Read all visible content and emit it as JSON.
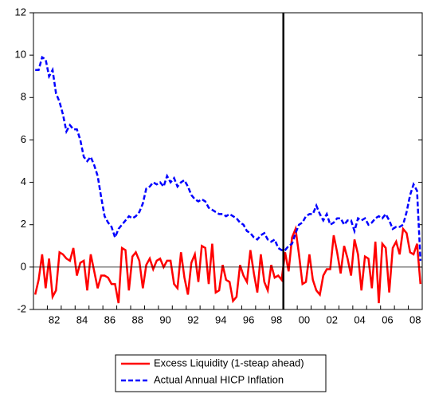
{
  "chart_data": {
    "type": "line",
    "categories": [
      null,
      null,
      null,
      null,
      "82",
      null,
      null,
      null,
      null,
      null,
      null,
      null,
      "84",
      null,
      null,
      null,
      null,
      null,
      null,
      null,
      "86",
      null,
      null,
      null,
      null,
      null,
      null,
      null,
      "88",
      null,
      null,
      null,
      null,
      null,
      null,
      null,
      "90",
      null,
      null,
      null,
      null,
      null,
      null,
      null,
      "92",
      null,
      null,
      null,
      null,
      null,
      null,
      null,
      "94",
      null,
      null,
      null,
      null,
      null,
      null,
      null,
      "96",
      null,
      null,
      null,
      null,
      null,
      null,
      null,
      "98",
      null,
      null,
      null,
      null,
      null,
      null,
      null,
      "00",
      null,
      null,
      null,
      null,
      null,
      null,
      null,
      "02",
      null,
      null,
      null,
      null,
      null,
      null,
      null,
      "04",
      null,
      null,
      null,
      null,
      null,
      null,
      null,
      "06",
      null,
      null,
      null,
      null,
      null,
      null,
      null,
      "08",
      null,
      null,
      null
    ],
    "series": [
      {
        "name": "Excess Liquidity (1-steap ahead)",
        "color": "#ff0000",
        "dash": false,
        "values": [
          -1.3,
          -0.6,
          0.6,
          -1.0,
          0.4,
          -1.4,
          -1.1,
          0.7,
          0.6,
          0.4,
          0.3,
          0.9,
          -0.4,
          0.2,
          0.3,
          -1.1,
          0.6,
          -0.2,
          -1.0,
          -0.4,
          -0.4,
          -0.5,
          -0.8,
          -0.8,
          -1.7,
          0.9,
          0.8,
          -1.1,
          0.5,
          0.7,
          0.3,
          -1.0,
          0.1,
          0.4,
          -0.1,
          0.3,
          0.4,
          0.0,
          0.3,
          0.3,
          -0.8,
          -1.0,
          0.7,
          -0.5,
          -1.3,
          0.2,
          0.6,
          -0.7,
          1.0,
          0.9,
          -0.8,
          1.1,
          -1.2,
          -1.1,
          0.1,
          -0.6,
          -0.7,
          -1.6,
          -1.4,
          0.1,
          -0.4,
          -0.7,
          0.8,
          -0.3,
          -1.2,
          0.6,
          -0.7,
          -1.1,
          0.1,
          -0.5,
          -0.4,
          -0.6,
          0.7,
          -0.2,
          1.4,
          1.8,
          0.6,
          -0.8,
          -0.7,
          0.6,
          -0.6,
          -1.1,
          -1.3,
          -0.4,
          -0.1,
          -0.1,
          1.5,
          0.7,
          -0.3,
          1.0,
          0.4,
          -0.4,
          1.3,
          0.6,
          -1.1,
          0.5,
          0.4,
          -1.0,
          1.2,
          -1.7,
          1.1,
          0.9,
          -1.2,
          0.9,
          1.2,
          0.6,
          1.8,
          1.6,
          0.7,
          0.6,
          1.1,
          -0.8
        ]
      },
      {
        "name": "Actual Annual HICP Inflation",
        "color": "#0000ff",
        "dash": true,
        "values": [
          9.3,
          9.3,
          9.9,
          9.8,
          9.0,
          9.3,
          8.2,
          7.8,
          7.2,
          6.4,
          6.7,
          6.5,
          6.5,
          6.0,
          5.2,
          5.0,
          5.2,
          4.8,
          4.3,
          3.3,
          2.4,
          2.1,
          1.9,
          1.4,
          1.8,
          2.0,
          2.2,
          2.4,
          2.3,
          2.4,
          2.6,
          3.0,
          3.7,
          3.8,
          4.0,
          3.9,
          4.0,
          3.8,
          4.3,
          4.0,
          4.2,
          3.8,
          4.0,
          4.1,
          3.8,
          3.4,
          3.2,
          3.1,
          3.2,
          3.1,
          2.8,
          2.7,
          2.6,
          2.5,
          2.5,
          2.4,
          2.5,
          2.4,
          2.3,
          2.1,
          2.0,
          1.7,
          1.6,
          1.4,
          1.3,
          1.5,
          1.6,
          1.3,
          1.2,
          1.3,
          0.9,
          0.8,
          0.8,
          1.0,
          1.1,
          1.6,
          2.0,
          2.1,
          2.4,
          2.5,
          2.5,
          2.9,
          2.5,
          2.2,
          2.5,
          2.0,
          2.1,
          2.3,
          2.3,
          2.0,
          2.2,
          2.2,
          1.7,
          2.3,
          2.2,
          2.3,
          2.0,
          2.1,
          2.3,
          2.4,
          2.3,
          2.5,
          2.2,
          1.8,
          1.9,
          1.9,
          2.0,
          2.6,
          3.4,
          3.9,
          3.6,
          0.3
        ]
      }
    ],
    "ylim": [
      -2,
      12
    ],
    "yticks": [
      -2,
      0,
      2,
      4,
      6,
      8,
      10,
      12
    ],
    "legend": "bottom"
  }
}
